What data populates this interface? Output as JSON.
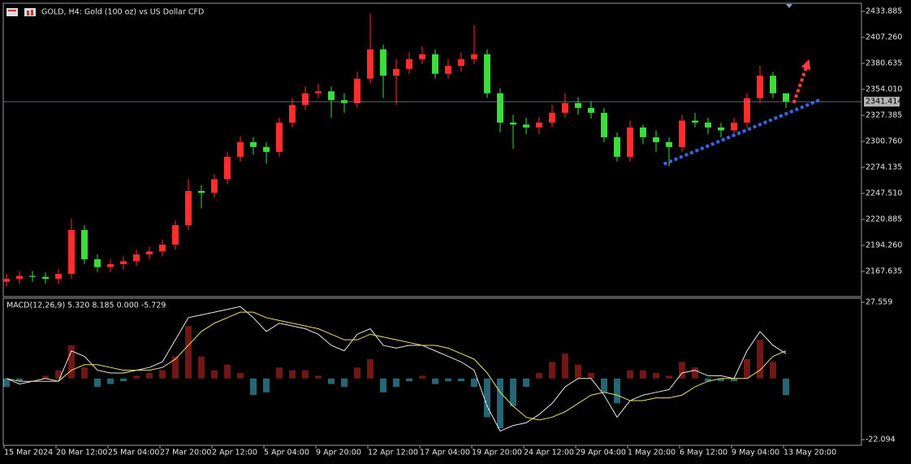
{
  "chart_data": [
    {
      "type": "candlestick",
      "title": "GOLD, H4:  Gold (100 oz) vs US Dollar CFD",
      "categories": [
        "15 Mar 2024",
        null,
        null,
        null,
        "20 Mar 12:00",
        null,
        null,
        null,
        "25 Mar 04:00",
        null,
        null,
        null,
        "27 Mar 20:00",
        null,
        null,
        null,
        "2 Apr 12:00",
        null,
        null,
        null,
        "5 Apr 04:00",
        null,
        null,
        null,
        "9 Apr 20:00",
        null,
        null,
        null,
        "12 Apr 12:00",
        null,
        null,
        null,
        "17 Apr 04:00",
        null,
        null,
        null,
        "19 Apr 20:00",
        null,
        null,
        null,
        "24 Apr 12:00",
        null,
        null,
        null,
        "29 Apr 04:00",
        null,
        null,
        null,
        "1 May 20:00",
        null,
        null,
        null,
        "6 May 12:00",
        null,
        null,
        null,
        "9 May 04:00",
        null,
        null,
        null,
        "13 May 20:00"
      ],
      "open": [
        2157,
        2160,
        2163,
        2162,
        2160,
        2165,
        2210,
        2180,
        2172,
        2175,
        2178,
        2185,
        2188,
        2195,
        2215,
        2250,
        2248,
        2262,
        2285,
        2300,
        2295,
        2290,
        2320,
        2338,
        2350,
        2352,
        2343,
        2340,
        2365,
        2395,
        2368,
        2375,
        2385,
        2390,
        2370,
        2378,
        2385,
        2390,
        2350,
        2320,
        2318,
        2315,
        2320,
        2330,
        2340,
        2335,
        2330,
        2305,
        2285,
        2315,
        2305,
        2300,
        2295,
        2322,
        2320,
        2315,
        2312,
        2320,
        2345,
        2368,
        2350
      ],
      "high": [
        2165,
        2168,
        2168,
        2167,
        2170,
        2222,
        2215,
        2185,
        2180,
        2183,
        2190,
        2193,
        2200,
        2220,
        2262,
        2256,
        2267,
        2290,
        2306,
        2305,
        2300,
        2325,
        2345,
        2357,
        2360,
        2357,
        2350,
        2372,
        2432,
        2400,
        2385,
        2392,
        2398,
        2395,
        2385,
        2392,
        2420,
        2395,
        2355,
        2328,
        2325,
        2326,
        2338,
        2350,
        2346,
        2342,
        2335,
        2310,
        2322,
        2318,
        2312,
        2305,
        2328,
        2330,
        2325,
        2320,
        2325,
        2350,
        2378,
        2372,
        2348
      ],
      "low": [
        2152,
        2155,
        2157,
        2155,
        2155,
        2160,
        2175,
        2167,
        2167,
        2170,
        2173,
        2180,
        2183,
        2190,
        2210,
        2232,
        2243,
        2257,
        2280,
        2287,
        2278,
        2285,
        2315,
        2333,
        2345,
        2325,
        2330,
        2335,
        2360,
        2345,
        2338,
        2370,
        2380,
        2365,
        2365,
        2372,
        2380,
        2345,
        2310,
        2293,
        2308,
        2308,
        2315,
        2325,
        2328,
        2324,
        2300,
        2280,
        2280,
        2298,
        2290,
        2275,
        2290,
        2315,
        2308,
        2305,
        2306,
        2315,
        2340,
        2345,
        2335
      ],
      "close": [
        2160,
        2163,
        2162,
        2160,
        2165,
        2210,
        2180,
        2172,
        2175,
        2178,
        2185,
        2188,
        2195,
        2215,
        2250,
        2248,
        2262,
        2285,
        2300,
        2295,
        2290,
        2320,
        2338,
        2350,
        2352,
        2343,
        2340,
        2365,
        2395,
        2368,
        2375,
        2385,
        2390,
        2370,
        2378,
        2385,
        2390,
        2350,
        2320,
        2318,
        2315,
        2320,
        2330,
        2340,
        2335,
        2330,
        2305,
        2285,
        2315,
        2305,
        2300,
        2295,
        2322,
        2320,
        2315,
        2312,
        2320,
        2345,
        2368,
        2350,
        2341
      ],
      "up_color": "#ff2e2e",
      "down_color": "#3ddc3d",
      "ylim": [
        2141.8,
        2442.2
      ],
      "yticks": [
        2433.885,
        {
          "value": 2407.26,
          "label": "2407.260"
        },
        2380.635,
        {
          "value": 2354.01,
          "label": "2354.010"
        },
        2327.385,
        {
          "value": 2300.76,
          "label": "2300.760"
        },
        2274.135,
        {
          "value": 2247.51,
          "label": "2247.510"
        },
        2220.885,
        {
          "value": 2194.26,
          "label": "2194.260"
        },
        2167.635
      ],
      "current_price": 2341.414,
      "trendline": {
        "x": [
          50.6,
          62.75
        ],
        "y": [
          2277.5,
          2344.0
        ],
        "color": "#3f63e6"
      },
      "arrow": {
        "x": [
          60.6,
          61.7
        ],
        "y": [
          2340.1,
          2381.7
        ],
        "color": "#ff3b3b"
      }
    },
    {
      "type": "macd",
      "title": "MACD(12,26,9) 5.320 8.185 0.000 -5.729",
      "histogram": [
        -3,
        -1,
        0,
        1,
        3,
        12,
        4,
        -3,
        -2,
        -1,
        1,
        2,
        3,
        8,
        19,
        8,
        3,
        5,
        2,
        -6,
        -5,
        4,
        3,
        3,
        1,
        -2,
        -3,
        4,
        7,
        -5,
        -3,
        -1,
        1,
        -2,
        -1,
        -1,
        -3,
        -14,
        -18,
        -10,
        -3,
        2,
        6,
        9,
        5,
        2,
        -5,
        -9,
        3,
        3,
        2,
        1,
        6,
        4,
        -1,
        -1,
        -1,
        7,
        14,
        6,
        -6
      ],
      "macd": [
        0,
        -2,
        -1,
        0,
        -1,
        10,
        8,
        3,
        2,
        2,
        3,
        4,
        6,
        14,
        22,
        23,
        24,
        25,
        26,
        22,
        17,
        20,
        19,
        18,
        16,
        12,
        10,
        16,
        18,
        12,
        11,
        12,
        12,
        10,
        8,
        6,
        3,
        -10,
        -19,
        -17,
        -16,
        -13,
        -9,
        -3,
        0,
        0,
        -6,
        -14,
        -8,
        -6,
        -5,
        -4,
        2,
        3,
        1,
        1,
        0,
        10,
        17,
        12,
        9
      ],
      "signal": [
        0,
        -1,
        -1,
        -1,
        -1,
        3,
        5,
        5,
        4,
        3,
        3,
        3,
        4,
        7,
        12,
        17,
        20,
        22,
        24,
        24,
        22,
        21,
        20,
        19,
        18,
        16,
        14,
        14,
        16,
        15,
        14,
        13,
        12,
        12,
        11,
        9,
        7,
        2,
        -5,
        -10,
        -14,
        -15,
        -14,
        -12,
        -9,
        -6,
        -5,
        -6,
        -8,
        -8,
        -7,
        -7,
        -6,
        -3,
        -1,
        0,
        0,
        0,
        3,
        8,
        10
      ],
      "positive_color": "#e03030",
      "negative_color": "#4ec9e8",
      "macd_color": "#e8e8e8",
      "signal_color": "#e8e070",
      "ylim": [
        -24.15,
        29.03
      ],
      "yticks": [
        27.559,
        -22.094
      ]
    }
  ]
}
